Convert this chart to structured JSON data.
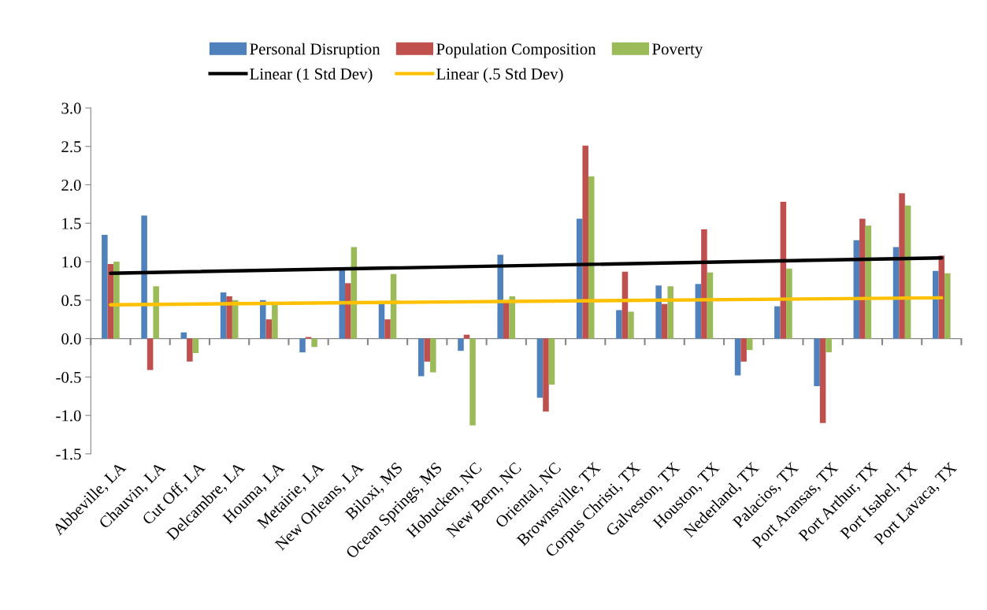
{
  "chart_data": {
    "type": "bar",
    "categories": [
      "Abbeville, LA",
      "Chauvin, LA",
      "Cut Off, LA",
      "Delcambre, LA",
      "Houma, LA",
      "Metairie, LA",
      "New Orleans, LA",
      "Biloxi, MS",
      "Ocean Springs, MS",
      "Hobucken, NC",
      "New Bern, NC",
      "Oriental, NC",
      "Brownsville, TX",
      "Corpus Christi, TX",
      "Galveston, TX",
      "Houston, TX",
      "Nederland, TX",
      "Palacios, TX",
      "Port Aransas, TX",
      "Port Arthur, TX",
      "Port Isabel, TX",
      "Port Lavaca, TX"
    ],
    "series": [
      {
        "name": "Personal Disruption",
        "color": "#4f81bd",
        "values": [
          1.35,
          1.6,
          0.08,
          0.6,
          0.5,
          -0.18,
          0.9,
          0.45,
          -0.49,
          -0.16,
          1.09,
          -0.77,
          1.56,
          0.37,
          0.69,
          0.71,
          -0.48,
          0.42,
          -0.62,
          1.28,
          1.19,
          0.88
        ]
      },
      {
        "name": "Population Composition",
        "color": "#c0504d",
        "values": [
          0.97,
          -0.41,
          -0.3,
          0.55,
          0.25,
          0.02,
          0.72,
          0.25,
          -0.3,
          0.05,
          0.48,
          -0.95,
          2.51,
          0.87,
          0.45,
          1.42,
          -0.3,
          1.78,
          -1.1,
          1.56,
          1.89,
          1.08
        ]
      },
      {
        "name": "Poverty",
        "color": "#9bbb59",
        "values": [
          1.0,
          0.68,
          -0.19,
          0.5,
          0.45,
          -0.11,
          1.19,
          0.84,
          -0.44,
          -1.13,
          0.55,
          -0.6,
          2.11,
          0.35,
          0.68,
          0.86,
          -0.15,
          0.91,
          -0.18,
          1.47,
          1.73,
          0.85
        ]
      },
      {
        "name": "Linear (1 Std Dev)",
        "type": "line",
        "color": "#000000",
        "x": [
          "Abbeville, LA",
          "Port Lavaca, TX"
        ],
        "values": [
          0.85,
          1.05
        ]
      },
      {
        "name": "Linear (.5 Std Dev)",
        "type": "line",
        "color": "#ffc000",
        "x": [
          "Abbeville, LA",
          "Port Lavaca, TX"
        ],
        "values": [
          0.44,
          0.53
        ]
      }
    ],
    "ylim": [
      -1.5,
      3.0
    ],
    "yticks": [
      {
        "value": -1.5,
        "label": "-1.5"
      },
      {
        "value": -1.0,
        "label": "-1.0"
      },
      {
        "value": -0.5,
        "label": "-0.5"
      },
      {
        "value": 0.0,
        "label": "0.0"
      },
      {
        "value": 0.5,
        "label": "0.5"
      },
      {
        "value": 1.0,
        "label": "1.0"
      },
      {
        "value": 1.5,
        "label": "1.5"
      },
      {
        "value": 2.0,
        "label": "2.0"
      },
      {
        "value": 2.5,
        "label": "2.5"
      },
      {
        "value": 3.0,
        "label": "3.0"
      }
    ],
    "legend": "top"
  }
}
